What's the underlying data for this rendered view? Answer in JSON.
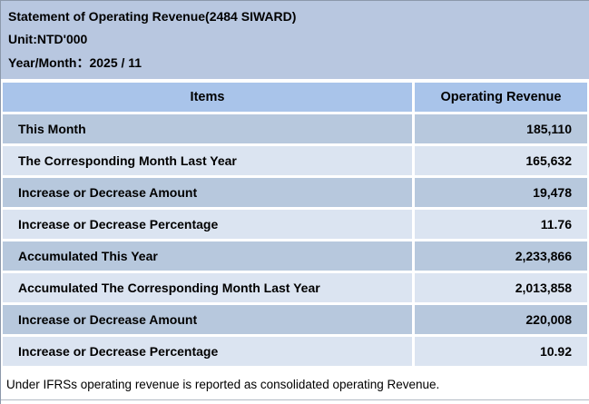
{
  "colors": {
    "page_header_bg": "#b8c7e0",
    "table_header_bg": "#a9c4ea",
    "row_dark_bg": "#b7c8dd",
    "row_light_bg": "#dbe4f1",
    "gap": "#ffffff",
    "text": "#000000",
    "footer_bg": "#ffffff",
    "outer_border": "#8c98ab",
    "footer_rule": "#b3bac4"
  },
  "header": {
    "title": "Statement of Operating Revenue(2484 SIWARD)",
    "unit": "Unit:NTD'000",
    "period": "Year/Month：2025 / 11"
  },
  "table": {
    "columns": {
      "items": "Items",
      "value": "Operating Revenue"
    },
    "rows": [
      {
        "label": "This Month",
        "value": "185,110"
      },
      {
        "label": "The Corresponding Month Last Year",
        "value": "165,632"
      },
      {
        "label": "Increase or Decrease Amount",
        "value": "19,478"
      },
      {
        "label": "Increase or Decrease Percentage",
        "value": "11.76"
      },
      {
        "label": "Accumulated This Year",
        "value": "2,233,866"
      },
      {
        "label": "Accumulated The Corresponding Month Last Year",
        "value": "2,013,858"
      },
      {
        "label": "Increase or Decrease Amount",
        "value": "220,008"
      },
      {
        "label": "Increase or Decrease Percentage",
        "value": "10.92"
      }
    ]
  },
  "footer": {
    "note": "Under IFRSs operating revenue is reported as consolidated operating Revenue."
  }
}
